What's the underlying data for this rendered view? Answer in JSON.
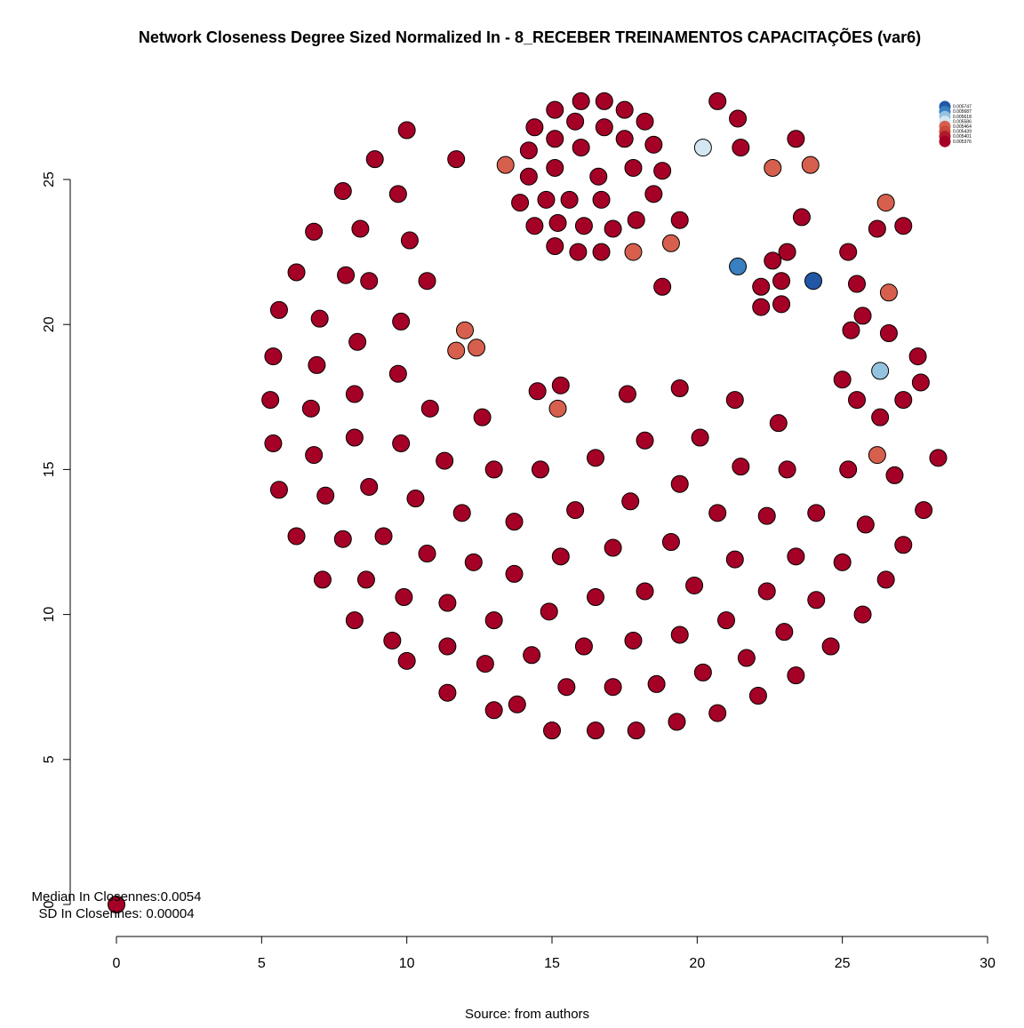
{
  "chart_data": {
    "type": "scatter",
    "title": "Network Closeness Degree Sized Normalized In - 8_RECEBER TREINAMENTOS CAPACITAÇÕES (var6)",
    "caption": "Source: from authors",
    "stats": {
      "median_label": "Median In Closennes:0.0054",
      "sd_label": "SD In Closennes: 0.00004"
    },
    "xlim": [
      0,
      30
    ],
    "ylim": [
      0,
      27.8
    ],
    "x_ticks": [
      0,
      5,
      10,
      15,
      20,
      25,
      30
    ],
    "y_ticks": [
      0,
      5,
      10,
      15,
      20,
      25
    ],
    "grid": false,
    "legend": {
      "position": "top-right",
      "entries": [
        {
          "label": "0.005747",
          "color": "#2257a5"
        },
        {
          "label": "0.005687",
          "color": "#3a7fbf"
        },
        {
          "label": "0.005618",
          "color": "#94c3df"
        },
        {
          "label": "0.005586",
          "color": "#d3e6f2"
        },
        {
          "label": "0.005464",
          "color": "#d6604d"
        },
        {
          "label": "0.005439",
          "color": "#c84a3d"
        },
        {
          "label": "0.005401",
          "color": "#b2182b"
        },
        {
          "label": "0.005376",
          "color": "#a50026"
        }
      ]
    },
    "colors": {
      "default_node": "#a50026",
      "highlight": "#2257a5"
    },
    "points": [
      [
        0,
        0,
        "#a50026"
      ],
      [
        16,
        27.7,
        "#a50026"
      ],
      [
        16.8,
        27.7,
        "#a50026"
      ],
      [
        15.1,
        27.4,
        "#a50026"
      ],
      [
        17.5,
        27.4,
        "#a50026"
      ],
      [
        20.7,
        27.7,
        "#a50026"
      ],
      [
        21.4,
        27.1,
        "#a50026"
      ],
      [
        14.4,
        26.8,
        "#a50026"
      ],
      [
        15.8,
        27,
        "#a50026"
      ],
      [
        16.8,
        26.8,
        "#a50026"
      ],
      [
        18.2,
        27,
        "#a50026"
      ],
      [
        10,
        26.7,
        "#a50026"
      ],
      [
        23.4,
        26.4,
        "#a50026"
      ],
      [
        14.2,
        26,
        "#a50026"
      ],
      [
        15.1,
        26.4,
        "#a50026"
      ],
      [
        16,
        26.1,
        "#a50026"
      ],
      [
        17.5,
        26.4,
        "#a50026"
      ],
      [
        18.5,
        26.2,
        "#a50026"
      ],
      [
        20.2,
        26.1,
        "#d3e6f2"
      ],
      [
        21.5,
        26.1,
        "#a50026"
      ],
      [
        8.9,
        25.7,
        "#a50026"
      ],
      [
        11.7,
        25.7,
        "#a50026"
      ],
      [
        13.4,
        25.5,
        "#d6604d"
      ],
      [
        15.1,
        25.4,
        "#a50026"
      ],
      [
        17.8,
        25.4,
        "#a50026"
      ],
      [
        18.8,
        25.3,
        "#a50026"
      ],
      [
        22.6,
        25.4,
        "#d6604d"
      ],
      [
        23.9,
        25.5,
        "#d6604d"
      ],
      [
        14.2,
        25.1,
        "#a50026"
      ],
      [
        16.6,
        25.1,
        "#a50026"
      ],
      [
        7.8,
        24.6,
        "#a50026"
      ],
      [
        9.7,
        24.5,
        "#a50026"
      ],
      [
        18.5,
        24.5,
        "#a50026"
      ],
      [
        13.9,
        24.2,
        "#a50026"
      ],
      [
        14.8,
        24.3,
        "#a50026"
      ],
      [
        15.6,
        24.3,
        "#a50026"
      ],
      [
        16.7,
        24.3,
        "#a50026"
      ],
      [
        26.5,
        24.2,
        "#d6604d"
      ],
      [
        14.4,
        23.4,
        "#a50026"
      ],
      [
        15.2,
        23.5,
        "#a50026"
      ],
      [
        16.1,
        23.4,
        "#a50026"
      ],
      [
        17.1,
        23.3,
        "#a50026"
      ],
      [
        17.9,
        23.6,
        "#a50026"
      ],
      [
        19.4,
        23.6,
        "#a50026"
      ],
      [
        23.6,
        23.7,
        "#a50026"
      ],
      [
        26.2,
        23.3,
        "#a50026"
      ],
      [
        27.1,
        23.4,
        "#a50026"
      ],
      [
        6.8,
        23.2,
        "#a50026"
      ],
      [
        8.4,
        23.3,
        "#a50026"
      ],
      [
        10.1,
        22.9,
        "#a50026"
      ],
      [
        15.1,
        22.7,
        "#a50026"
      ],
      [
        15.9,
        22.5,
        "#a50026"
      ],
      [
        16.7,
        22.5,
        "#a50026"
      ],
      [
        17.8,
        22.5,
        "#d6604d"
      ],
      [
        19.1,
        22.8,
        "#d6604d"
      ],
      [
        22.6,
        22.2,
        "#a50026"
      ],
      [
        23.1,
        22.5,
        "#a50026"
      ],
      [
        25.2,
        22.5,
        "#a50026"
      ],
      [
        21.4,
        22,
        "#3a7fbf"
      ],
      [
        6.2,
        21.8,
        "#a50026"
      ],
      [
        7.9,
        21.7,
        "#a50026"
      ],
      [
        8.7,
        21.5,
        "#a50026"
      ],
      [
        10.7,
        21.5,
        "#a50026"
      ],
      [
        18.8,
        21.3,
        "#a50026"
      ],
      [
        22.9,
        21.5,
        "#a50026"
      ],
      [
        24,
        21.5,
        "#2257a5"
      ],
      [
        25.5,
        21.4,
        "#a50026"
      ],
      [
        22.2,
        21.3,
        "#a50026"
      ],
      [
        26.6,
        21.1,
        "#d6604d"
      ],
      [
        22.2,
        20.6,
        "#a50026"
      ],
      [
        22.9,
        20.7,
        "#a50026"
      ],
      [
        5.6,
        20.5,
        "#a50026"
      ],
      [
        7,
        20.2,
        "#a50026"
      ],
      [
        9.8,
        20.1,
        "#a50026"
      ],
      [
        25.7,
        20.3,
        "#a50026"
      ],
      [
        12,
        19.8,
        "#d6604d"
      ],
      [
        25.3,
        19.8,
        "#a50026"
      ],
      [
        26.6,
        19.7,
        "#a50026"
      ],
      [
        8.3,
        19.4,
        "#a50026"
      ],
      [
        12.4,
        19.2,
        "#d6604d"
      ],
      [
        11.7,
        19.1,
        "#d6604d"
      ],
      [
        5.4,
        18.9,
        "#a50026"
      ],
      [
        6.9,
        18.6,
        "#a50026"
      ],
      [
        27.6,
        18.9,
        "#a50026"
      ],
      [
        9.7,
        18.3,
        "#a50026"
      ],
      [
        26.3,
        18.4,
        "#94c3df"
      ],
      [
        25,
        18.1,
        "#a50026"
      ],
      [
        27.7,
        18,
        "#a50026"
      ],
      [
        15.3,
        17.9,
        "#a50026"
      ],
      [
        19.4,
        17.8,
        "#a50026"
      ],
      [
        14.5,
        17.7,
        "#a50026"
      ],
      [
        17.6,
        17.6,
        "#a50026"
      ],
      [
        8.2,
        17.6,
        "#a50026"
      ],
      [
        5.3,
        17.4,
        "#a50026"
      ],
      [
        21.3,
        17.4,
        "#a50026"
      ],
      [
        25.5,
        17.4,
        "#a50026"
      ],
      [
        27.1,
        17.4,
        "#a50026"
      ],
      [
        6.7,
        17.1,
        "#a50026"
      ],
      [
        10.8,
        17.1,
        "#a50026"
      ],
      [
        15.2,
        17.1,
        "#d6604d"
      ],
      [
        12.6,
        16.8,
        "#a50026"
      ],
      [
        26.3,
        16.8,
        "#a50026"
      ],
      [
        22.8,
        16.6,
        "#a50026"
      ],
      [
        20.1,
        16.1,
        "#a50026"
      ],
      [
        8.2,
        16.1,
        "#a50026"
      ],
      [
        18.2,
        16,
        "#a50026"
      ],
      [
        5.4,
        15.9,
        "#a50026"
      ],
      [
        9.8,
        15.9,
        "#a50026"
      ],
      [
        26.2,
        15.5,
        "#d6604d"
      ],
      [
        6.8,
        15.5,
        "#a50026"
      ],
      [
        11.3,
        15.3,
        "#a50026"
      ],
      [
        16.5,
        15.4,
        "#a50026"
      ],
      [
        28.3,
        15.4,
        "#a50026"
      ],
      [
        13,
        15,
        "#a50026"
      ],
      [
        14.6,
        15,
        "#a50026"
      ],
      [
        21.5,
        15.1,
        "#a50026"
      ],
      [
        23.1,
        15,
        "#a50026"
      ],
      [
        25.2,
        15,
        "#a50026"
      ],
      [
        26.8,
        14.8,
        "#a50026"
      ],
      [
        19.4,
        14.5,
        "#a50026"
      ],
      [
        5.6,
        14.3,
        "#a50026"
      ],
      [
        8.7,
        14.4,
        "#a50026"
      ],
      [
        7.2,
        14.1,
        "#a50026"
      ],
      [
        10.3,
        14,
        "#a50026"
      ],
      [
        17.7,
        13.9,
        "#a50026"
      ],
      [
        15.8,
        13.6,
        "#a50026"
      ],
      [
        27.8,
        13.6,
        "#a50026"
      ],
      [
        11.9,
        13.5,
        "#a50026"
      ],
      [
        20.7,
        13.5,
        "#a50026"
      ],
      [
        22.4,
        13.4,
        "#a50026"
      ],
      [
        24.1,
        13.5,
        "#a50026"
      ],
      [
        13.7,
        13.2,
        "#a50026"
      ],
      [
        25.8,
        13.1,
        "#a50026"
      ],
      [
        6.2,
        12.7,
        "#a50026"
      ],
      [
        7.8,
        12.6,
        "#a50026"
      ],
      [
        9.2,
        12.7,
        "#a50026"
      ],
      [
        19.1,
        12.5,
        "#a50026"
      ],
      [
        27.1,
        12.4,
        "#a50026"
      ],
      [
        10.7,
        12.1,
        "#a50026"
      ],
      [
        17.1,
        12.3,
        "#a50026"
      ],
      [
        15.3,
        12,
        "#a50026"
      ],
      [
        23.4,
        12,
        "#a50026"
      ],
      [
        12.3,
        11.8,
        "#a50026"
      ],
      [
        21.3,
        11.9,
        "#a50026"
      ],
      [
        25,
        11.8,
        "#a50026"
      ],
      [
        13.7,
        11.4,
        "#a50026"
      ],
      [
        7.1,
        11.2,
        "#a50026"
      ],
      [
        8.6,
        11.2,
        "#a50026"
      ],
      [
        26.5,
        11.2,
        "#a50026"
      ],
      [
        19.9,
        11,
        "#a50026"
      ],
      [
        18.2,
        10.8,
        "#a50026"
      ],
      [
        22.4,
        10.8,
        "#a50026"
      ],
      [
        9.9,
        10.6,
        "#a50026"
      ],
      [
        16.5,
        10.6,
        "#a50026"
      ],
      [
        24.1,
        10.5,
        "#a50026"
      ],
      [
        11.4,
        10.4,
        "#a50026"
      ],
      [
        14.9,
        10.1,
        "#a50026"
      ],
      [
        25.7,
        10,
        "#a50026"
      ],
      [
        8.2,
        9.8,
        "#a50026"
      ],
      [
        13,
        9.8,
        "#a50026"
      ],
      [
        21,
        9.8,
        "#a50026"
      ],
      [
        23,
        9.4,
        "#a50026"
      ],
      [
        19.4,
        9.3,
        "#a50026"
      ],
      [
        17.8,
        9.1,
        "#a50026"
      ],
      [
        9.5,
        9.1,
        "#a50026"
      ],
      [
        11.4,
        8.9,
        "#a50026"
      ],
      [
        16.1,
        8.9,
        "#a50026"
      ],
      [
        24.6,
        8.9,
        "#a50026"
      ],
      [
        14.3,
        8.6,
        "#a50026"
      ],
      [
        21.7,
        8.5,
        "#a50026"
      ],
      [
        10,
        8.4,
        "#a50026"
      ],
      [
        12.7,
        8.3,
        "#a50026"
      ],
      [
        20.2,
        8,
        "#a50026"
      ],
      [
        23.4,
        7.9,
        "#a50026"
      ],
      [
        18.6,
        7.6,
        "#a50026"
      ],
      [
        15.5,
        7.5,
        "#a50026"
      ],
      [
        17.1,
        7.5,
        "#a50026"
      ],
      [
        11.4,
        7.3,
        "#a50026"
      ],
      [
        22.1,
        7.2,
        "#a50026"
      ],
      [
        13.8,
        6.9,
        "#a50026"
      ],
      [
        13,
        6.7,
        "#a50026"
      ],
      [
        20.7,
        6.6,
        "#a50026"
      ],
      [
        19.3,
        6.3,
        "#a50026"
      ],
      [
        15,
        6,
        "#a50026"
      ],
      [
        16.5,
        6,
        "#a50026"
      ],
      [
        17.9,
        6,
        "#a50026"
      ]
    ]
  }
}
